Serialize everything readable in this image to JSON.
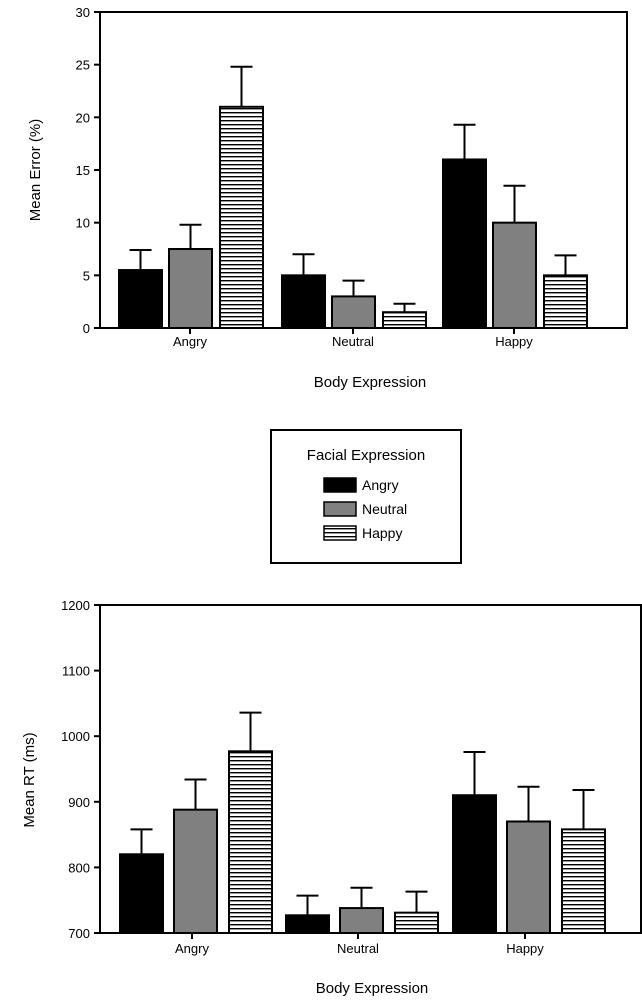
{
  "legend": {
    "title": "Facial Expression",
    "entries": [
      "Angry",
      "Neutral",
      "Happy"
    ]
  },
  "colors": {
    "angry": "#000000",
    "neutral": "#808080",
    "happy_pattern": "horizontal-stripes",
    "axis": "#000000"
  },
  "chart_data": [
    {
      "type": "bar",
      "categories": [
        "Angry",
        "Neutral",
        "Happy"
      ],
      "xlabel": "Body Expression",
      "ylabel": "Mean Error (%)",
      "ylim": [
        0,
        30
      ],
      "yticks": [
        0,
        5,
        10,
        15,
        20,
        25,
        30
      ],
      "grid": false,
      "legend": "below",
      "series": [
        {
          "name": "Angry",
          "values": [
            5.5,
            5.0,
            16.0
          ],
          "errors": [
            1.9,
            2.0,
            3.3
          ]
        },
        {
          "name": "Neutral",
          "values": [
            7.5,
            3.0,
            10.0
          ],
          "errors": [
            2.3,
            1.5,
            3.5
          ]
        },
        {
          "name": "Happy",
          "values": [
            21.0,
            1.5,
            5.0
          ],
          "errors": [
            3.8,
            0.8,
            1.9
          ]
        }
      ]
    },
    {
      "type": "bar",
      "categories": [
        "Angry",
        "Neutral",
        "Happy"
      ],
      "xlabel": "Body Expression",
      "ylabel": "Mean RT (ms)",
      "ylim": [
        700,
        1200
      ],
      "yticks": [
        700,
        800,
        900,
        1000,
        1100,
        1200
      ],
      "grid": false,
      "legend": "above",
      "series": [
        {
          "name": "Angry",
          "values": [
            820,
            727,
            910
          ],
          "errors": [
            38,
            30,
            66
          ]
        },
        {
          "name": "Neutral",
          "values": [
            888,
            738,
            870
          ],
          "errors": [
            46,
            31,
            53
          ]
        },
        {
          "name": "Happy",
          "values": [
            977,
            731,
            858
          ],
          "errors": [
            59,
            32,
            60
          ]
        }
      ]
    }
  ]
}
